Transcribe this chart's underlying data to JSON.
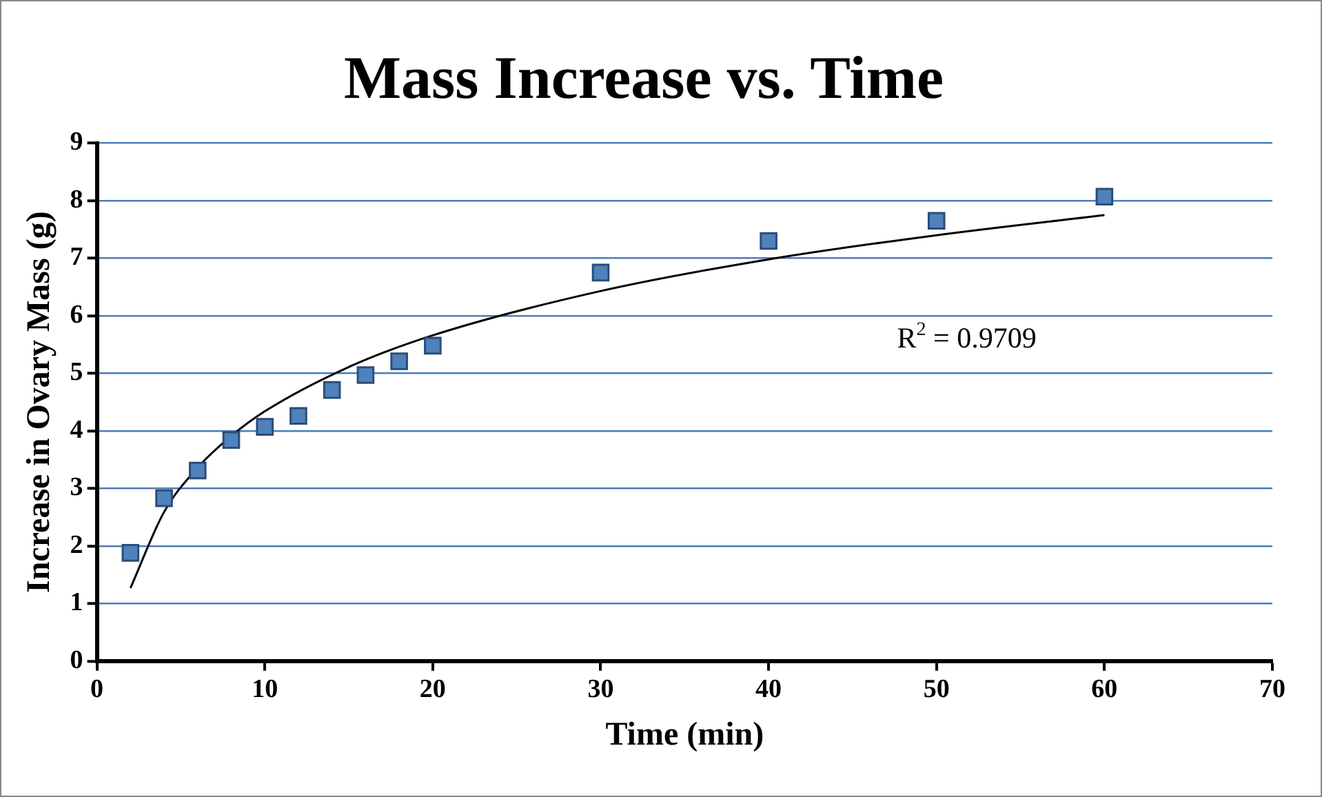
{
  "chart_data": {
    "type": "scatter",
    "title": "Mass Increase vs. Time",
    "xlabel": "Time (min)",
    "ylabel": "Increase in Ovary Mass (g)",
    "xlim": [
      0,
      70
    ],
    "xticks": [
      0,
      10,
      20,
      30,
      40,
      50,
      60,
      70
    ],
    "ylim": [
      0,
      9
    ],
    "yticks": [
      0,
      1,
      2,
      3,
      4,
      5,
      6,
      7,
      8,
      9
    ],
    "grid": "y",
    "legend": false,
    "series": [
      {
        "color": "#4f81bd",
        "marker": "square",
        "x": [
          2,
          4,
          6,
          8,
          10,
          12,
          14,
          16,
          18,
          20,
          30,
          40,
          50,
          60
        ],
        "values": [
          1.88,
          2.83,
          3.31,
          3.84,
          4.07,
          4.26,
          4.71,
          4.97,
          5.21,
          5.48,
          6.75,
          7.3,
          7.65,
          8.07
        ]
      },
      {
        "type": "line",
        "color": "#000000",
        "marker": "none",
        "x": [
          2,
          4,
          6,
          8,
          10,
          15,
          20,
          30,
          40,
          50,
          60
        ],
        "values": [
          1.27,
          2.59,
          3.36,
          3.91,
          4.34,
          5.11,
          5.66,
          6.43,
          6.98,
          7.4,
          7.75
        ]
      }
    ],
    "annotations": [
      "R$^{2}$ = 0.9709"
    ]
  }
}
